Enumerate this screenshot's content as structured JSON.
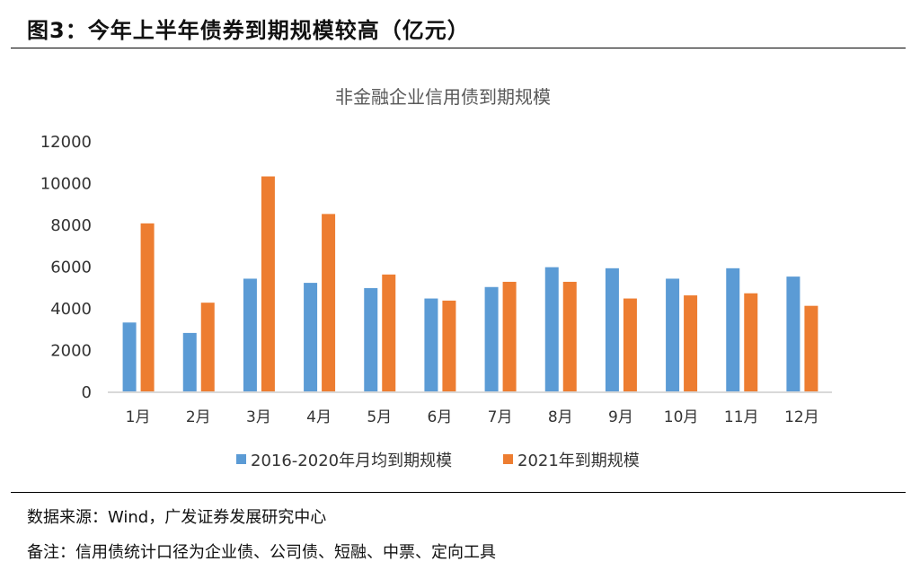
{
  "header": {
    "title": "图3：今年上半年债券到期规模较高（亿元）"
  },
  "chart_data": {
    "type": "bar",
    "title": "非金融企业信用债到期规模",
    "categories": [
      "1月",
      "2月",
      "3月",
      "4月",
      "5月",
      "6月",
      "7月",
      "8月",
      "9月",
      "10月",
      "11月",
      "12月"
    ],
    "series": [
      {
        "name": "2016-2020年月均到期规模",
        "color": "#5B9BD5",
        "values": [
          3300,
          2800,
          5400,
          5200,
          4950,
          4450,
          5000,
          5950,
          5900,
          5400,
          5900,
          5500
        ]
      },
      {
        "name": "2021年到期规模",
        "color": "#ED7D31",
        "values": [
          8050,
          4250,
          10300,
          8500,
          5600,
          4350,
          5250,
          5250,
          4450,
          4600,
          4700,
          4100
        ]
      }
    ],
    "ylim": [
      0,
      12000
    ],
    "yticks": [
      "0",
      "2000",
      "4000",
      "6000",
      "8000",
      "10000",
      "12000"
    ],
    "grid": false,
    "legend": "bottom"
  },
  "footer": {
    "source": "数据来源：Wind，广发证券发展研究中心",
    "note": "备注：信用债统计口径为企业债、公司债、短融、中票、定向工具"
  }
}
